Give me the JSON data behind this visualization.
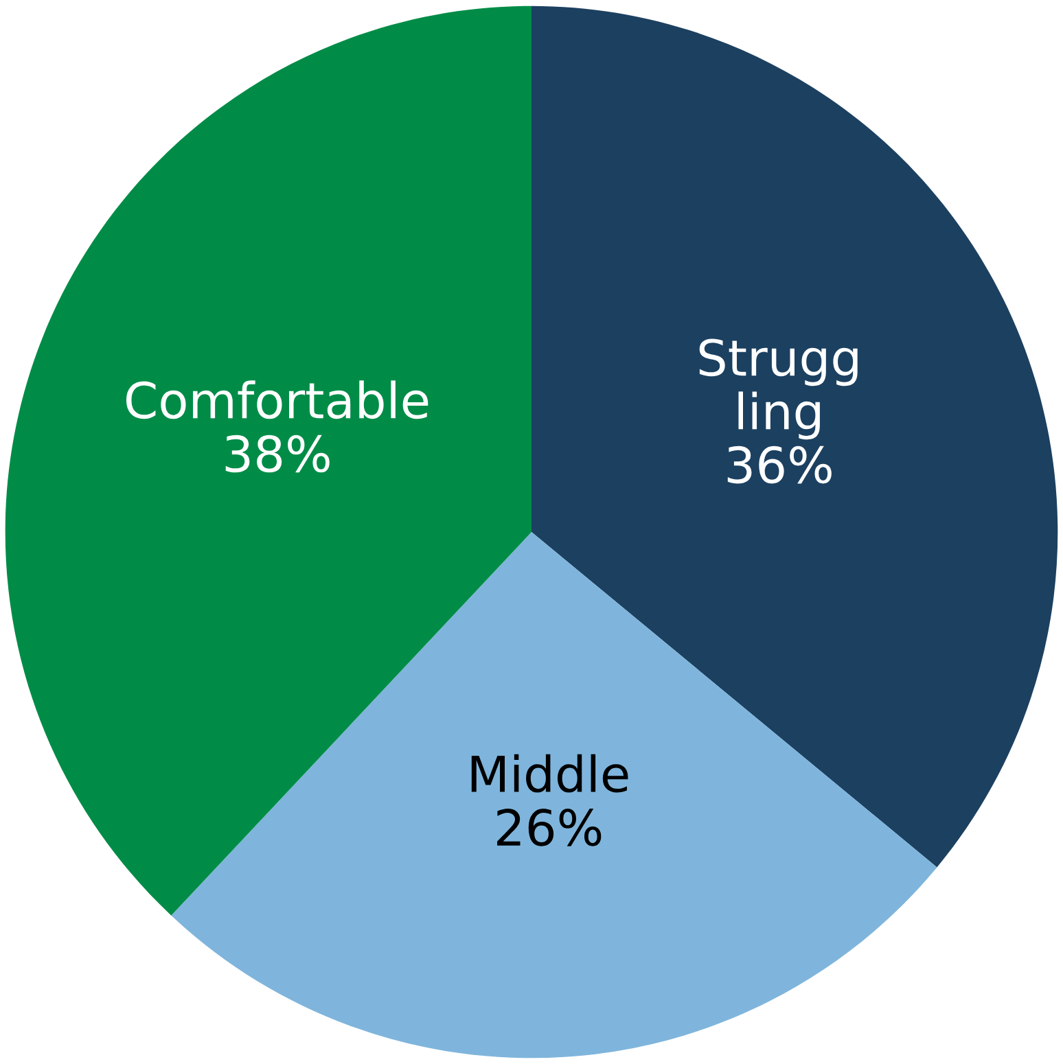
{
  "chart_data": {
    "type": "pie",
    "categories": [
      "Strugg\nling",
      "Middle",
      "Comfortable"
    ],
    "values": [
      36,
      26,
      38
    ],
    "value_labels": [
      "36%",
      "26%",
      "38%"
    ],
    "colors": [
      "#1c4060",
      "#7fb5dc",
      "#008c47"
    ],
    "legend": false
  }
}
